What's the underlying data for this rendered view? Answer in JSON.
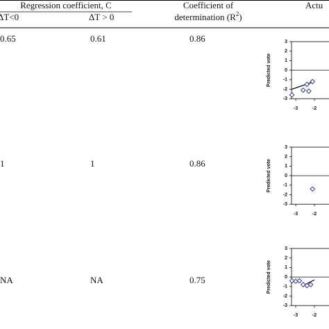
{
  "table": {
    "header": {
      "group": "Regression coefficient, C",
      "neg": "ΔT<0",
      "pos": "ΔT > 0",
      "r2_line1": "Coefficient of",
      "r2_line2": "determination (R",
      "r2_sup": "2",
      "r2_end": ")",
      "actual": "Actu"
    },
    "rows": [
      {
        "neg": 0.65,
        "pos": 0.61,
        "r2": 0.86,
        "chart": {
          "ylabel": "Predicted vote",
          "yticks": [
            3,
            2,
            1,
            0,
            -1,
            -2,
            -3
          ],
          "xticks": [
            -3,
            -2
          ],
          "x": [
            -3.2,
            -2.6,
            -2.3,
            -2.4,
            -2.1
          ],
          "y": [
            -2.6,
            -2.1,
            -2.2,
            -1.5,
            -1.2
          ],
          "fit_x": [
            -3.2,
            -2.0
          ],
          "fit_y": [
            -2.0,
            -1.2
          ]
        }
      },
      {
        "neg": 1,
        "pos": 1,
        "r2": 0.86,
        "chart": {
          "ylabel": "Predicted vote",
          "yticks": [
            3,
            2,
            1,
            0,
            -1,
            -2,
            -3
          ],
          "xticks": [
            -3,
            -2
          ],
          "x": [
            -2.1
          ],
          "y": [
            -1.4
          ],
          "fit_x": [],
          "fit_y": []
        }
      },
      {
        "neg": "NA",
        "pos": "NA",
        "r2": 0.75,
        "chart": {
          "ylabel": "Predicted vote",
          "yticks": [
            3,
            2,
            1,
            0,
            -1,
            -2,
            -3
          ],
          "xticks": [
            -3,
            -2
          ],
          "x": [
            -3.2,
            -3.0,
            -2.8,
            -2.6,
            -2.4,
            -2.2
          ],
          "y": [
            -0.4,
            -0.45,
            -0.4,
            -0.8,
            -0.9,
            -0.8
          ],
          "fit_x": [
            -2.5,
            -2.0
          ],
          "fit_y": [
            -0.8,
            -0.3
          ]
        }
      }
    ]
  }
}
